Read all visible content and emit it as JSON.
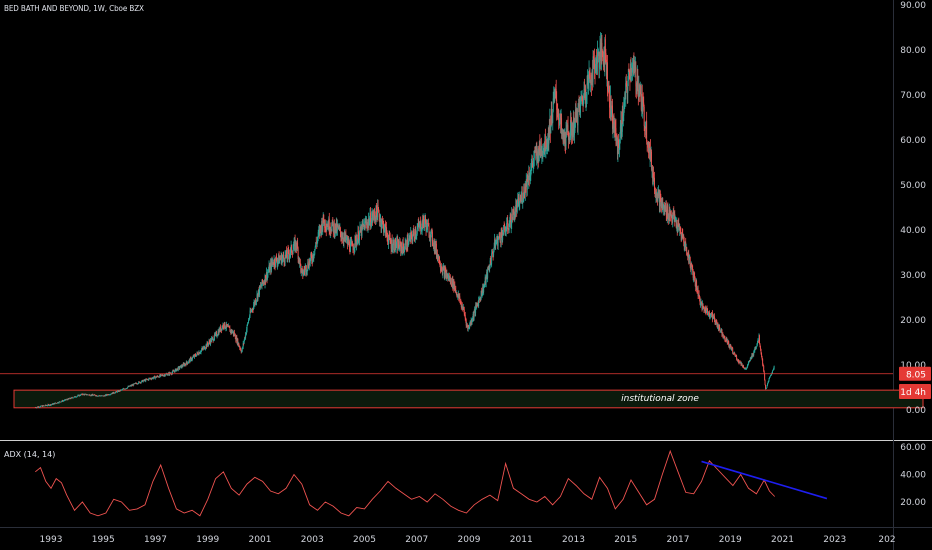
{
  "header": {
    "title": "BED BATH AND BEYOND, 1W, Cboe BZX"
  },
  "colors": {
    "background": "#000000",
    "up": "#26a69a",
    "down": "#ef5350",
    "line_level": "#e53935",
    "zone_border": "#e53935",
    "zone_fill": "#0c1a0c",
    "adx_line": "#ef5350",
    "trendline": "#1e1ef0",
    "axis_text": "#d1d4dc",
    "grid_sep": "#cfcfcf"
  },
  "chart_data": [
    {
      "type": "candlestick",
      "title": "BED BATH AND BEYOND, 1W, Cboe BZX",
      "y_ticks": [
        "0.00",
        "10.00",
        "20.00",
        "30.00",
        "40.00",
        "50.00",
        "60.00",
        "70.00",
        "80.00",
        "90.00"
      ],
      "y_range": [
        0,
        90
      ],
      "x_ticks": [
        "1993",
        "1995",
        "1997",
        "1999",
        "2001",
        "2003",
        "2005",
        "2007",
        "2009",
        "2011",
        "2013",
        "2015",
        "2017",
        "2019",
        "2021",
        "2023",
        "202"
      ],
      "price_path": [
        [
          1992.4,
          0.6
        ],
        [
          1993.0,
          1.2
        ],
        [
          1993.6,
          2.3
        ],
        [
          1994.2,
          3.5
        ],
        [
          1995.0,
          3.1
        ],
        [
          1995.6,
          4.2
        ],
        [
          1996.3,
          6.0
        ],
        [
          1996.8,
          7.0
        ],
        [
          1997.6,
          8.2
        ],
        [
          1998.2,
          10.5
        ],
        [
          1998.8,
          13.5
        ],
        [
          1999.3,
          16.5
        ],
        [
          1999.6,
          19.0
        ],
        [
          2000.0,
          17.0
        ],
        [
          2000.3,
          13.0
        ],
        [
          2000.6,
          21.0
        ],
        [
          2001.0,
          27.0
        ],
        [
          2001.5,
          33.0
        ],
        [
          2002.0,
          34.0
        ],
        [
          2002.4,
          37.0
        ],
        [
          2002.6,
          30.0
        ],
        [
          2003.0,
          34.0
        ],
        [
          2003.4,
          42.0
        ],
        [
          2004.0,
          40.0
        ],
        [
          2004.5,
          36.0
        ],
        [
          2005.0,
          41.0
        ],
        [
          2005.5,
          44.0
        ],
        [
          2006.0,
          37.0
        ],
        [
          2006.5,
          36.0
        ],
        [
          2007.0,
          40.0
        ],
        [
          2007.3,
          42.0
        ],
        [
          2007.6,
          38.0
        ],
        [
          2008.0,
          31.0
        ],
        [
          2008.4,
          28.0
        ],
        [
          2008.8,
          22.0
        ],
        [
          2008.95,
          18.0
        ],
        [
          2009.1,
          20.0
        ],
        [
          2009.6,
          28.0
        ],
        [
          2010.0,
          37.0
        ],
        [
          2010.5,
          41.0
        ],
        [
          2011.0,
          47.0
        ],
        [
          2011.5,
          56.0
        ],
        [
          2012.0,
          60.0
        ],
        [
          2012.3,
          70.0
        ],
        [
          2012.6,
          60.0
        ],
        [
          2013.0,
          63.0
        ],
        [
          2013.5,
          72.0
        ],
        [
          2013.9,
          78.0
        ],
        [
          2014.2,
          80.0
        ],
        [
          2014.4,
          68.0
        ],
        [
          2014.7,
          58.0
        ],
        [
          2015.0,
          70.0
        ],
        [
          2015.2,
          77.0
        ],
        [
          2015.5,
          72.0
        ],
        [
          2015.8,
          62.0
        ],
        [
          2016.1,
          50.0
        ],
        [
          2016.4,
          45.0
        ],
        [
          2016.8,
          43.0
        ],
        [
          2017.2,
          38.0
        ],
        [
          2017.6,
          30.0
        ],
        [
          2017.9,
          23.0
        ],
        [
          2018.3,
          21.0
        ],
        [
          2018.7,
          17.0
        ],
        [
          2019.0,
          14.0
        ],
        [
          2019.3,
          11.0
        ],
        [
          2019.6,
          9.0
        ],
        [
          2019.9,
          13.0
        ],
        [
          2020.1,
          16.0
        ],
        [
          2020.3,
          8.0
        ],
        [
          2020.35,
          4.5
        ],
        [
          2020.5,
          7.0
        ],
        [
          2020.7,
          10.0
        ]
      ],
      "levels": [
        {
          "name": "last-price-line",
          "value": 8.05,
          "label": "8.05"
        }
      ],
      "badges": [
        {
          "name": "countdown",
          "label": "1d 4h"
        }
      ],
      "zones": [
        {
          "name": "institutional-zone",
          "label": "institutional zone",
          "y_from": 0.6,
          "y_to": 4.3,
          "x_from": 1991.0,
          "x_to": 2025.0
        }
      ]
    },
    {
      "type": "line",
      "title": "ADX (14, 14)",
      "y_ticks": [
        "20.00",
        "40.00",
        "60.00"
      ],
      "y_range": [
        5,
        62
      ],
      "series": [
        {
          "x": [
            1992.4,
            1992.6,
            1992.8,
            1993.0,
            1993.2,
            1993.4,
            1993.6,
            1993.9,
            1994.2,
            1994.5,
            1994.8,
            1995.1,
            1995.4,
            1995.7,
            1996.0,
            1996.3,
            1996.6,
            1996.9,
            1997.2,
            1997.5,
            1997.8,
            1998.1,
            1998.4,
            1998.7,
            1999.0,
            1999.3,
            1999.6,
            1999.9,
            2000.2,
            2000.5,
            2000.8,
            2001.1,
            2001.4,
            2001.7,
            2002.0,
            2002.3,
            2002.6,
            2002.9,
            2003.2,
            2003.5,
            2003.8,
            2004.1,
            2004.4,
            2004.7,
            2005.0,
            2005.3,
            2005.6,
            2005.9,
            2006.2,
            2006.5,
            2006.8,
            2007.1,
            2007.4,
            2007.7,
            2008.0,
            2008.3,
            2008.6,
            2008.9,
            2009.2,
            2009.5,
            2009.8,
            2010.1,
            2010.4,
            2010.7,
            2011.0,
            2011.3,
            2011.6,
            2011.9,
            2012.2,
            2012.5,
            2012.8,
            2013.1,
            2013.4,
            2013.7,
            2014.0,
            2014.3,
            2014.6,
            2014.9,
            2015.2,
            2015.5,
            2015.8,
            2016.1,
            2016.4,
            2016.7,
            2017.0,
            2017.3,
            2017.6,
            2017.9,
            2018.2,
            2018.5,
            2018.8,
            2019.1,
            2019.4,
            2019.7,
            2020.0,
            2020.3,
            2020.5,
            2020.7
          ],
          "values": [
            42,
            45,
            35,
            30,
            37,
            34,
            25,
            14,
            20,
            12,
            10,
            12,
            22,
            20,
            14,
            15,
            18,
            35,
            47,
            30,
            15,
            12,
            14,
            10,
            22,
            37,
            42,
            30,
            25,
            33,
            38,
            35,
            28,
            26,
            30,
            40,
            33,
            18,
            14,
            20,
            17,
            12,
            10,
            16,
            15,
            22,
            28,
            35,
            30,
            26,
            22,
            24,
            20,
            26,
            22,
            17,
            14,
            12,
            18,
            22,
            25,
            21,
            48,
            30,
            26,
            22,
            20,
            24,
            18,
            24,
            37,
            32,
            26,
            22,
            38,
            30,
            15,
            22,
            36,
            27,
            18,
            22,
            40,
            57,
            42,
            27,
            26,
            35,
            50,
            44,
            38,
            32,
            40,
            30,
            26,
            36,
            28,
            24
          ]
        }
      ],
      "trendline": {
        "x": [
          2017.9,
          2022.7
        ],
        "y": [
          49.5,
          22.5
        ]
      }
    }
  ]
}
